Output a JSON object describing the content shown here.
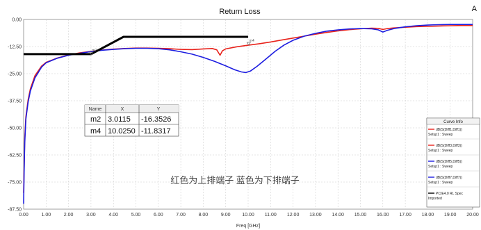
{
  "chart_data": {
    "type": "line",
    "title": "Return Loss",
    "xlabel": "Freq [GHz]",
    "ylabel": "",
    "xlim": [
      0,
      20
    ],
    "ylim": [
      -87.5,
      0
    ],
    "xticks": [
      "0.00",
      "1.00",
      "2.00",
      "3.00",
      "4.00",
      "5.00",
      "6.00",
      "7.00",
      "8.00",
      "9.00",
      "10.00",
      "11.00",
      "12.00",
      "13.00",
      "14.00",
      "15.00",
      "16.00",
      "17.00",
      "18.00",
      "19.00",
      "20.00"
    ],
    "yticks": [
      "0.00",
      "-12.50",
      "-25.00",
      "-37.50",
      "-50.00",
      "-62.50",
      "-75.00",
      "-87.50"
    ],
    "grid": true,
    "series": [
      {
        "name": "dB(S(Diff1,Diff1))",
        "sub": "Setup1 : Sweep",
        "color": "#e8231c",
        "x": [
          0.0,
          0.02,
          0.05,
          0.1,
          0.2,
          0.3,
          0.5,
          0.8,
          1.0,
          1.5,
          2.0,
          2.5,
          3.0,
          3.5,
          4.0,
          4.5,
          5.0,
          5.5,
          6.0,
          6.5,
          7.0,
          7.5,
          8.0,
          8.4,
          8.6,
          8.75,
          8.85,
          9.0,
          9.5,
          10.0,
          10.5,
          11.0,
          11.5,
          12.0,
          12.5,
          13.0,
          13.5,
          14.0,
          14.5,
          15.0,
          15.5,
          15.8,
          16.0,
          16.2,
          16.5,
          17.0,
          17.5,
          18.0,
          18.5,
          19.0,
          19.5,
          20.0
        ],
        "y": [
          -80.0,
          -70.0,
          -55.0,
          -45.0,
          -37.0,
          -32.0,
          -26.0,
          -21.5,
          -19.8,
          -17.8,
          -16.4,
          -15.4,
          -14.7,
          -14.1,
          -13.7,
          -13.4,
          -13.2,
          -13.2,
          -13.3,
          -13.5,
          -13.8,
          -13.9,
          -13.6,
          -13.4,
          -14.0,
          -16.5,
          -14.5,
          -13.6,
          -12.6,
          -11.9,
          -11.2,
          -10.4,
          -9.5,
          -8.6,
          -7.7,
          -6.8,
          -6.0,
          -5.3,
          -4.7,
          -4.3,
          -4.0,
          -4.1,
          -4.6,
          -4.2,
          -3.9,
          -3.6,
          -3.3,
          -3.2,
          -3.0,
          -2.9,
          -2.8,
          -2.8
        ]
      },
      {
        "name": "dB(S(Diff3,Diff3))",
        "sub": "Setup1 : Sweep",
        "color": "#e8231c",
        "x": [],
        "y": []
      },
      {
        "name": "dB(S(Diff5,Diff5))",
        "sub": "Setup1 : Sweep",
        "color": "#1d1de0",
        "x": [
          0.0,
          0.02,
          0.05,
          0.1,
          0.2,
          0.3,
          0.5,
          0.8,
          1.0,
          1.5,
          2.0,
          2.5,
          3.0,
          3.5,
          4.0,
          4.5,
          5.0,
          5.5,
          6.0,
          6.5,
          7.0,
          7.5,
          8.0,
          8.5,
          9.0,
          9.4,
          9.7,
          9.9,
          10.1,
          10.4,
          10.8,
          11.2,
          11.6,
          12.0,
          12.5,
          13.0,
          13.5,
          14.0,
          14.5,
          15.0,
          15.5,
          15.8,
          16.0,
          16.2,
          16.5,
          17.0,
          17.5,
          18.0,
          18.5,
          19.0,
          19.5,
          20.0
        ],
        "y": [
          -85.0,
          -72.0,
          -57.0,
          -46.0,
          -38.0,
          -33.0,
          -27.0,
          -22.0,
          -20.0,
          -17.9,
          -16.5,
          -15.6,
          -14.8,
          -14.2,
          -13.8,
          -13.5,
          -13.3,
          -13.3,
          -13.5,
          -14.0,
          -14.9,
          -16.0,
          -17.5,
          -19.3,
          -21.4,
          -23.2,
          -24.2,
          -24.5,
          -23.8,
          -21.6,
          -18.2,
          -14.7,
          -11.8,
          -9.6,
          -7.7,
          -6.4,
          -5.4,
          -4.8,
          -4.4,
          -4.2,
          -4.3,
          -4.8,
          -5.8,
          -5.0,
          -4.2,
          -3.4,
          -2.9,
          -2.6,
          -2.4,
          -2.3,
          -2.3,
          -2.3
        ]
      },
      {
        "name": "dB(S(Diff7,Diff7))",
        "sub": "Setup1 : Sweep",
        "color": "#1d1de0",
        "x": [],
        "y": []
      },
      {
        "name": "PCIE4.0 RL Spec",
        "sub": "Imported",
        "color": "#000000",
        "x": [
          0.0,
          3.0,
          4.45,
          10.0
        ],
        "y": [
          -16.0,
          -16.0,
          -8.0,
          -8.0
        ]
      }
    ],
    "markers": [
      {
        "name": "m2",
        "x": 3.0115,
        "y": -16.3526,
        "xs": "3.0115",
        "ys": "-16.3526"
      },
      {
        "name": "m4",
        "x": 10.025,
        "y": -11.8317,
        "xs": "10.0250",
        "ys": "-11.8317"
      }
    ],
    "marker_table": {
      "headers": [
        "Name",
        "X",
        "Y"
      ]
    },
    "legend_title": "Curve Info",
    "legend_position": "bottom-right",
    "annotation": "红色为上排端子   蓝色为下排端子"
  }
}
